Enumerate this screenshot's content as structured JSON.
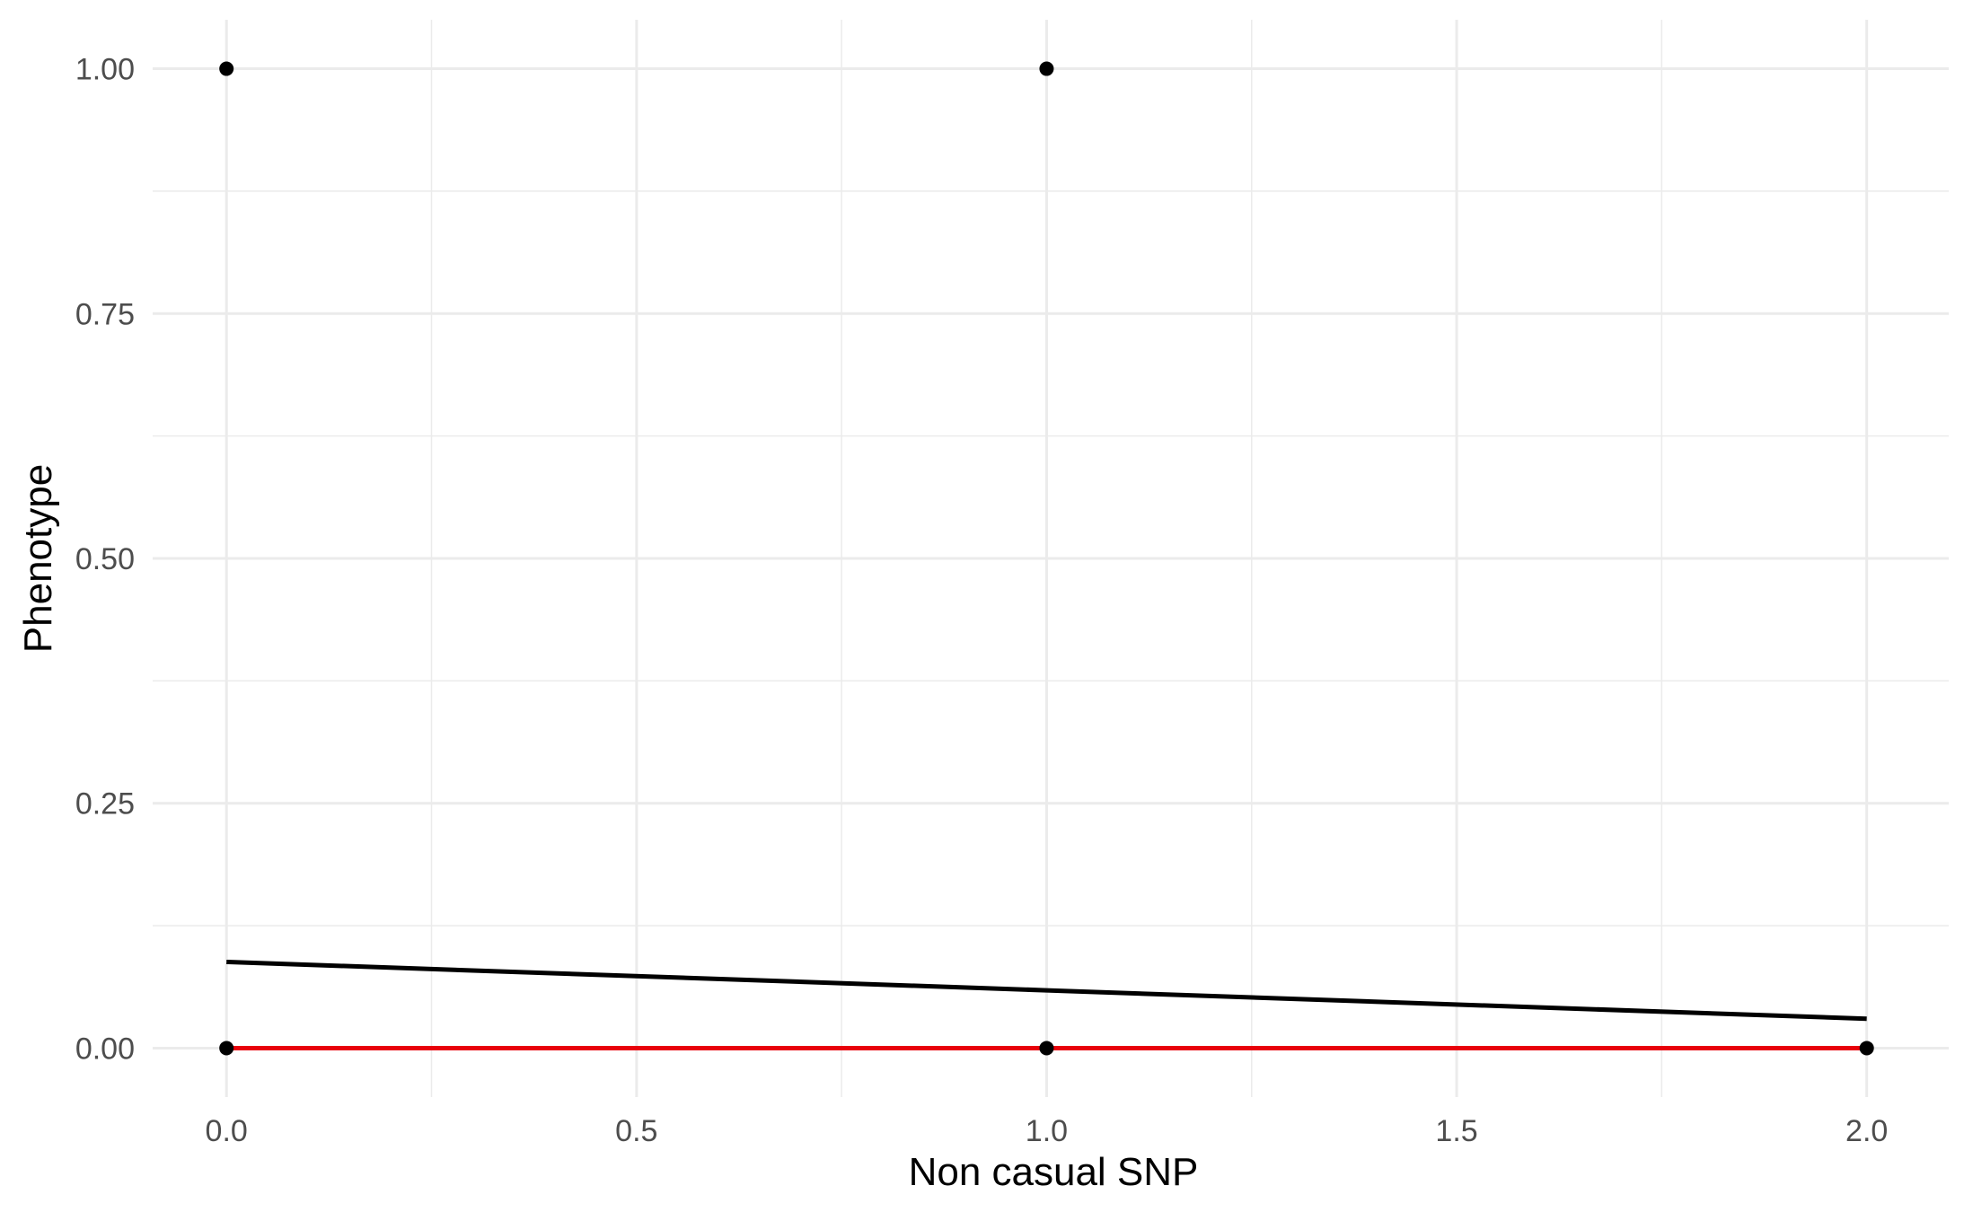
{
  "chart_data": {
    "type": "scatter",
    "title": "",
    "xlabel": "Non casual SNP",
    "ylabel": "Phenotype",
    "xlim": [
      -0.09,
      2.1
    ],
    "ylim": [
      -0.05,
      1.05
    ],
    "x_ticks": [
      0.0,
      0.5,
      1.0,
      1.5,
      2.0
    ],
    "x_tick_labels": [
      "0.0",
      "0.5",
      "1.0",
      "1.5",
      "2.0"
    ],
    "y_ticks": [
      0.0,
      0.25,
      0.5,
      0.75,
      1.0
    ],
    "y_tick_labels": [
      "0.00",
      "0.25",
      "0.50",
      "0.75",
      "1.00"
    ],
    "grid": true,
    "legend": "none",
    "points": [
      {
        "x": 0,
        "y": 1
      },
      {
        "x": 1,
        "y": 1
      },
      {
        "x": 0,
        "y": 0
      },
      {
        "x": 1,
        "y": 0
      },
      {
        "x": 2,
        "y": 0
      }
    ],
    "lines": [
      {
        "color": "#000000",
        "x": [
          0,
          1,
          2
        ],
        "y": [
          0.088,
          0.059,
          0.03
        ]
      },
      {
        "color": "#e8000b",
        "x": [
          0,
          2
        ],
        "y": [
          0,
          0
        ]
      }
    ],
    "colors": {
      "grid": "#ebebeb",
      "points": "#000000",
      "tick_text": "#4d4d4d"
    }
  }
}
